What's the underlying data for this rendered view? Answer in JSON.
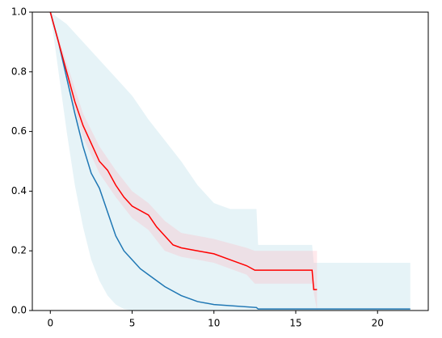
{
  "chart_data": {
    "type": "line",
    "xlim": [
      -1.1,
      23.1
    ],
    "xticks": [
      0,
      5,
      10,
      15,
      20
    ],
    "ylim": [
      0,
      1
    ],
    "yticks": [
      {
        "value": 0,
        "label": "0.0"
      },
      0.2,
      0.4,
      0.6,
      0.8,
      {
        "value": 1,
        "label": "1.0"
      }
    ],
    "bands": [
      {
        "color": "#add8e6",
        "opacity": 0.3,
        "x": [
          0,
          0.5,
          1,
          1.5,
          2,
          2.5,
          3,
          3.5,
          4,
          4.5,
          5,
          6,
          7,
          8,
          9,
          10,
          11,
          12.6,
          12.7,
          16,
          16.1,
          22
        ],
        "lower": [
          1,
          0.8,
          0.6,
          0.42,
          0.28,
          0.17,
          0.1,
          0.05,
          0.02,
          0.005,
          0,
          0,
          0,
          0,
          0,
          0,
          0,
          0,
          0,
          0,
          0,
          0
        ],
        "upper": [
          1,
          0.98,
          0.96,
          0.93,
          0.9,
          0.87,
          0.84,
          0.81,
          0.78,
          0.75,
          0.72,
          0.64,
          0.57,
          0.5,
          0.42,
          0.36,
          0.34,
          0.34,
          0.22,
          0.22,
          0.16,
          0.16
        ]
      },
      {
        "color": "#ffb6c1",
        "opacity": 0.3,
        "x": [
          0,
          1,
          2,
          3,
          4,
          5,
          6,
          7,
          8,
          10,
          12,
          12.5,
          16,
          16.3
        ],
        "lower": [
          1,
          0.77,
          0.58,
          0.46,
          0.38,
          0.31,
          0.27,
          0.2,
          0.18,
          0.16,
          0.12,
          0.09,
          0.09,
          0
        ],
        "upper": [
          1,
          0.83,
          0.66,
          0.55,
          0.47,
          0.4,
          0.36,
          0.3,
          0.26,
          0.24,
          0.21,
          0.2,
          0.2,
          0.2
        ]
      }
    ],
    "series": [
      {
        "color": "#1f77b4",
        "x": [
          0,
          0.5,
          1,
          1.5,
          2,
          2.5,
          3,
          3.5,
          4,
          4.5,
          5,
          5.5,
          6,
          6.5,
          7,
          8,
          9,
          10,
          12.6,
          12.7,
          22
        ],
        "values": [
          1,
          0.9,
          0.78,
          0.66,
          0.55,
          0.46,
          0.41,
          0.33,
          0.25,
          0.2,
          0.17,
          0.14,
          0.12,
          0.1,
          0.08,
          0.05,
          0.03,
          0.02,
          0.01,
          0.005,
          0.005
        ]
      },
      {
        "color": "#ff0000",
        "x": [
          0,
          0.5,
          1,
          1.5,
          2,
          2.5,
          3,
          3.5,
          4,
          4.5,
          5,
          6,
          6.5,
          7,
          7.5,
          8,
          9,
          10,
          11,
          12,
          12.5,
          16,
          16.1,
          16.3
        ],
        "values": [
          1,
          0.9,
          0.8,
          0.7,
          0.62,
          0.56,
          0.5,
          0.47,
          0.42,
          0.38,
          0.35,
          0.32,
          0.28,
          0.25,
          0.22,
          0.21,
          0.2,
          0.19,
          0.17,
          0.15,
          0.135,
          0.135,
          0.07,
          0.07
        ]
      }
    ]
  }
}
